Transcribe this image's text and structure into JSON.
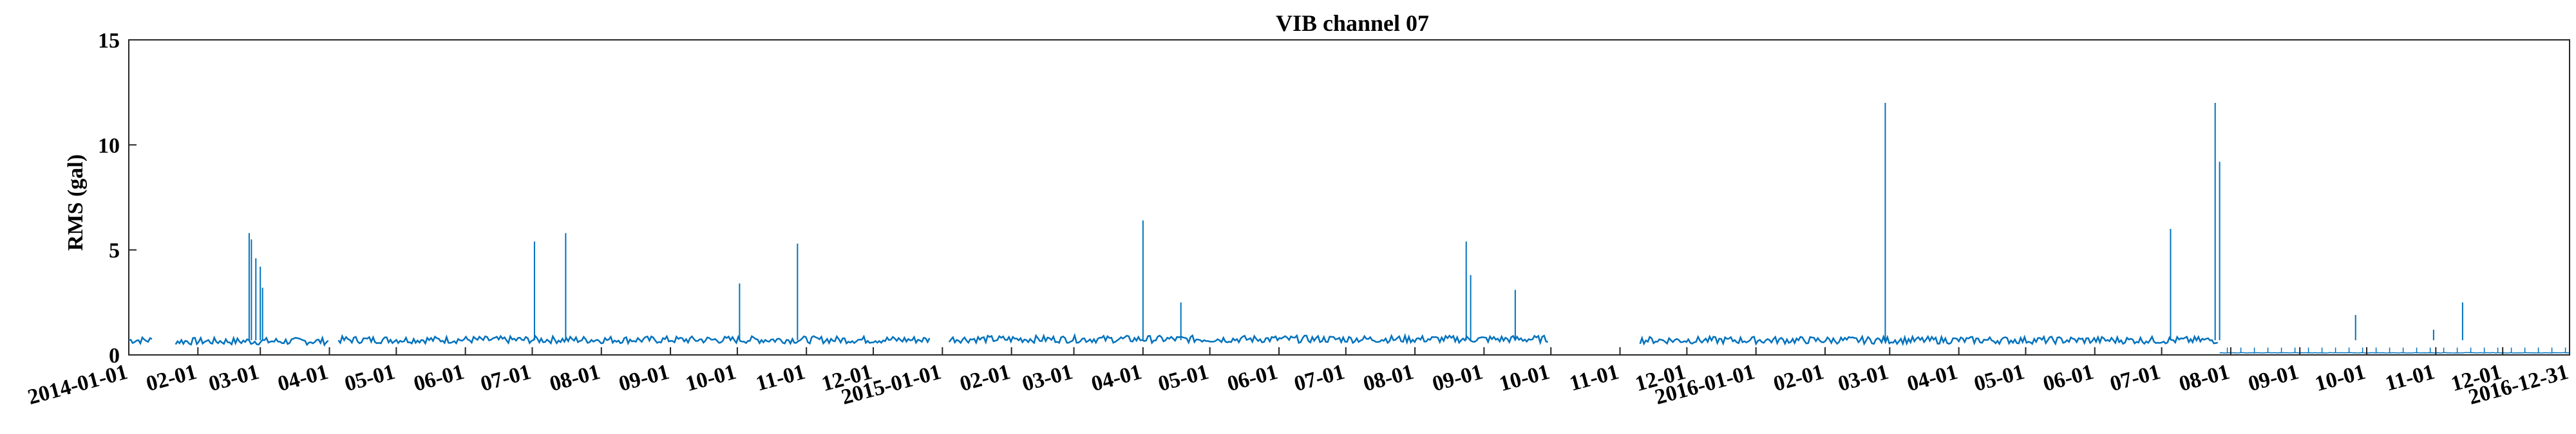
{
  "chart_data": {
    "type": "line",
    "title": "VIB channel 07",
    "xlabel": "",
    "ylabel": "RMS (gal)",
    "xlim": [
      "2014-01-01",
      "2016-12-31"
    ],
    "ylim": [
      0,
      15
    ],
    "yticks": [
      0,
      5,
      10,
      15
    ],
    "x_tick_labels": [
      "2014-01-01",
      "02-01",
      "03-01",
      "04-01",
      "05-01",
      "06-01",
      "07-01",
      "08-01",
      "09-01",
      "10-01",
      "11-01",
      "12-01",
      "2015-01-01",
      "02-01",
      "03-01",
      "04-01",
      "05-01",
      "06-01",
      "07-01",
      "08-01",
      "09-01",
      "10-01",
      "11-01",
      "12-01",
      "2016-01-01",
      "02-01",
      "03-01",
      "04-01",
      "05-01",
      "06-01",
      "07-01",
      "08-01",
      "09-01",
      "10-01",
      "11-01",
      "12-01",
      "2016-12-31"
    ],
    "x_tick_dates": [
      "2014-01-01",
      "2014-02-01",
      "2014-03-01",
      "2014-04-01",
      "2014-05-01",
      "2014-06-01",
      "2014-07-01",
      "2014-08-01",
      "2014-09-01",
      "2014-10-01",
      "2014-11-01",
      "2014-12-01",
      "2015-01-01",
      "2015-02-01",
      "2015-03-01",
      "2015-04-01",
      "2015-05-01",
      "2015-06-01",
      "2015-07-01",
      "2015-08-01",
      "2015-09-01",
      "2015-10-01",
      "2015-11-01",
      "2015-12-01",
      "2016-01-01",
      "2016-02-01",
      "2016-03-01",
      "2016-04-01",
      "2016-05-01",
      "2016-06-01",
      "2016-07-01",
      "2016-08-01",
      "2016-09-01",
      "2016-10-01",
      "2016-11-01",
      "2016-12-01",
      "2016-12-31"
    ],
    "series": [
      {
        "color": "#0072bd",
        "baseline_segments": [
          {
            "start": "2014-01-01",
            "end": "2014-01-12",
            "level": 0.7
          },
          {
            "start": "2014-01-22",
            "end": "2014-04-01",
            "level": 0.65
          },
          {
            "start": "2014-04-05",
            "end": "2014-12-27",
            "level": 0.72
          },
          {
            "start": "2015-01-04",
            "end": "2015-09-30",
            "level": 0.75
          },
          {
            "start": "2015-11-10",
            "end": "2016-07-27",
            "level": 0.7
          },
          {
            "start": "2016-07-27",
            "end": "2016-12-31",
            "level": 0.1
          }
        ],
        "spikes": [
          {
            "date": "2014-02-24",
            "value": 5.8
          },
          {
            "date": "2014-02-25",
            "value": 5.5
          },
          {
            "date": "2014-02-27",
            "value": 4.6
          },
          {
            "date": "2014-03-01",
            "value": 4.2
          },
          {
            "date": "2014-03-02",
            "value": 3.2
          },
          {
            "date": "2014-07-02",
            "value": 5.4
          },
          {
            "date": "2014-07-16",
            "value": 5.8
          },
          {
            "date": "2014-10-02",
            "value": 3.4
          },
          {
            "date": "2014-10-28",
            "value": 5.3
          },
          {
            "date": "2015-04-01",
            "value": 6.4
          },
          {
            "date": "2015-04-18",
            "value": 2.5
          },
          {
            "date": "2015-08-24",
            "value": 5.4
          },
          {
            "date": "2015-08-26",
            "value": 3.8
          },
          {
            "date": "2015-09-15",
            "value": 3.1
          },
          {
            "date": "2016-02-28",
            "value": 12.0
          },
          {
            "date": "2016-07-05",
            "value": 6.0
          },
          {
            "date": "2016-07-25",
            "value": 12.0
          },
          {
            "date": "2016-07-27",
            "value": 9.2
          },
          {
            "date": "2016-09-26",
            "value": 1.9
          },
          {
            "date": "2016-10-31",
            "value": 1.2
          },
          {
            "date": "2016-11-13",
            "value": 2.5
          }
        ]
      }
    ],
    "grid": false,
    "legend": "none"
  }
}
